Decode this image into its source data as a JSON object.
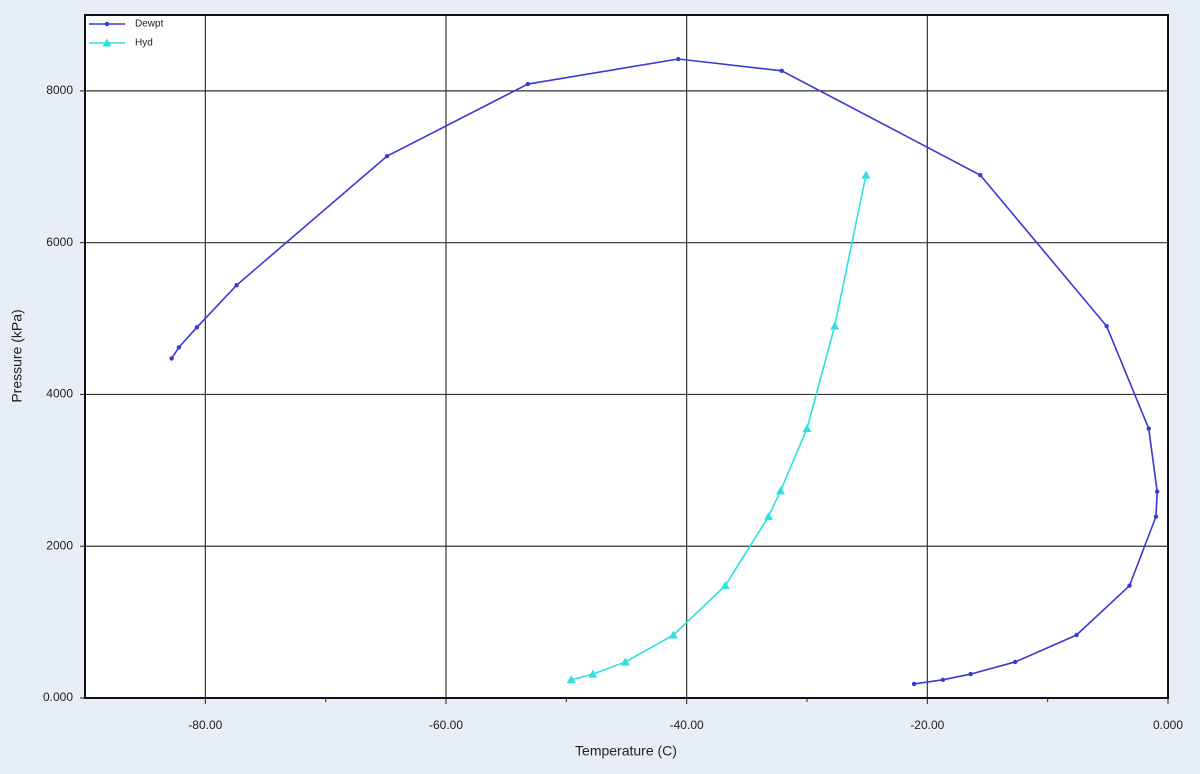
{
  "chart_data": {
    "type": "line",
    "xlabel": "Temperature (C)",
    "ylabel": "Pressure (kPa)",
    "xlim": [
      -90,
      0
    ],
    "xticks": [
      {
        "value": -80,
        "label": "-80.00"
      },
      {
        "value": -60,
        "label": "-60.00"
      },
      {
        "value": -40,
        "label": "-40.00"
      },
      {
        "value": -20,
        "label": "-20.00"
      },
      {
        "value": 0,
        "label": "0.000"
      }
    ],
    "xminorticks": [
      -70,
      -50,
      -30,
      -10
    ],
    "ylim": [
      0,
      9000
    ],
    "yticks": [
      {
        "value": 0,
        "label": "0.000"
      },
      2000,
      4000,
      6000,
      8000
    ],
    "grid": true,
    "legend": "upper left",
    "series": [
      {
        "name": "Dewpt",
        "color": "#3a3ad2",
        "marker": "dot",
        "x": [
          -82.8,
          -82.2,
          -80.7,
          -77.4,
          -64.9,
          -53.2,
          -40.7,
          -32.1,
          -15.6,
          -5.1,
          -1.6,
          -0.9,
          -1.0,
          -3.2,
          -7.6,
          -12.7,
          -16.4,
          -18.7,
          -21.1
        ],
        "values": [
          4475,
          4620,
          4885,
          5440,
          7140,
          8090,
          8420,
          8265,
          6890,
          4900,
          3550,
          2720,
          2390,
          1480,
          830,
          475,
          315,
          240,
          185
        ]
      },
      {
        "name": "Hyd",
        "color": "#30e0e0",
        "marker": "triangle",
        "x": [
          -25.1,
          -27.7,
          -30.0,
          -32.2,
          -33.2,
          -36.8,
          -41.1,
          -45.1,
          -47.8,
          -49.6
        ],
        "values": [
          6890,
          4900,
          3550,
          2730,
          2390,
          1480,
          830,
          475,
          315,
          240
        ]
      }
    ]
  }
}
